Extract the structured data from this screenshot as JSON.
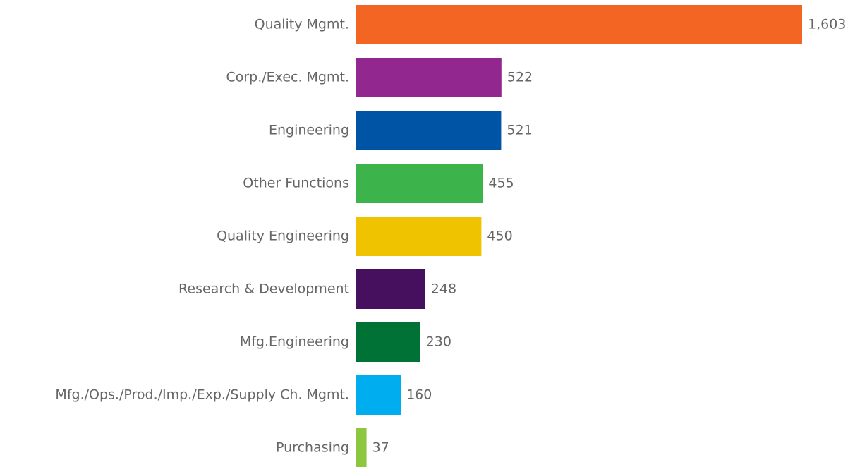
{
  "chart_data": {
    "type": "bar",
    "orientation": "horizontal",
    "categories": [
      "Quality Mgmt.",
      "Corp./Exec. Mgmt.",
      "Engineering",
      "Other Functions",
      "Quality Engineering",
      "Research & Development",
      "Mfg.Engineering",
      "Mfg./Ops./Prod./Imp./Exp./Supply Ch. Mgmt.",
      "Purchasing"
    ],
    "values": [
      1603,
      522,
      521,
      455,
      450,
      248,
      230,
      160,
      37
    ],
    "value_labels": [
      "1,603",
      "522",
      "521",
      "455",
      "450",
      "248",
      "230",
      "160",
      "37"
    ],
    "colors": [
      "#f26522",
      "#92278f",
      "#0054a6",
      "#3cb44b",
      "#f0c300",
      "#46105e",
      "#007236",
      "#00aeef",
      "#8dc63f"
    ]
  }
}
